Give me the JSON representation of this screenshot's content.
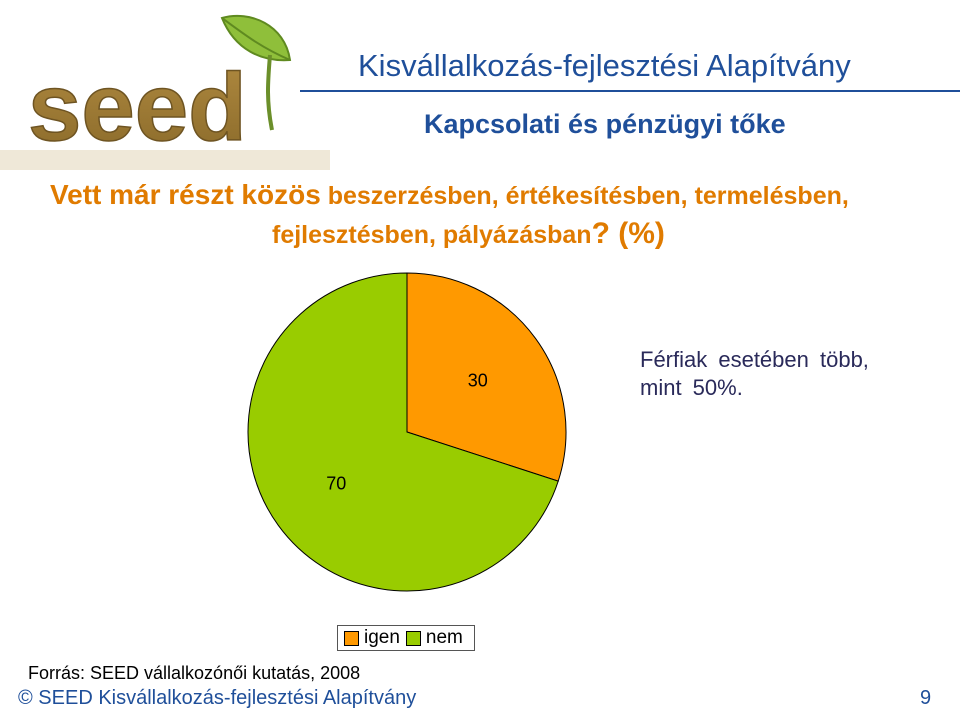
{
  "header": {
    "logo_text": "seed",
    "org_title": "Kisvállalkozás-fejlesztési Alapítvány",
    "subtitle": "Kapcsolati és pénzügyi tőke"
  },
  "question": {
    "part1": "Vett már részt közös",
    "part2": " beszerzésben, értékesítésben, termelésben,",
    "part3": "fejlesztésben, pályázásban",
    "part4": "? (%)"
  },
  "note": {
    "line1": "Férfiak esetében több,",
    "line2": "mint 50%."
  },
  "chart_data": {
    "type": "pie",
    "categories": [
      "igen",
      "nem"
    ],
    "values": [
      30,
      70
    ],
    "data_labels": [
      "30",
      "70"
    ],
    "colors": [
      "#ff9900",
      "#99cc00"
    ],
    "legend_position": "bottom"
  },
  "legend": {
    "items": [
      {
        "label": "igen",
        "color": "#ff9900"
      },
      {
        "label": "nem",
        "color": "#99cc00"
      }
    ]
  },
  "source": "Forrás: SEED vállalkozónői kutatás, 2008",
  "footer": {
    "copyright": "© SEED Kisvállalkozás-fejlesztési Alapítvány",
    "page_number": "9"
  }
}
